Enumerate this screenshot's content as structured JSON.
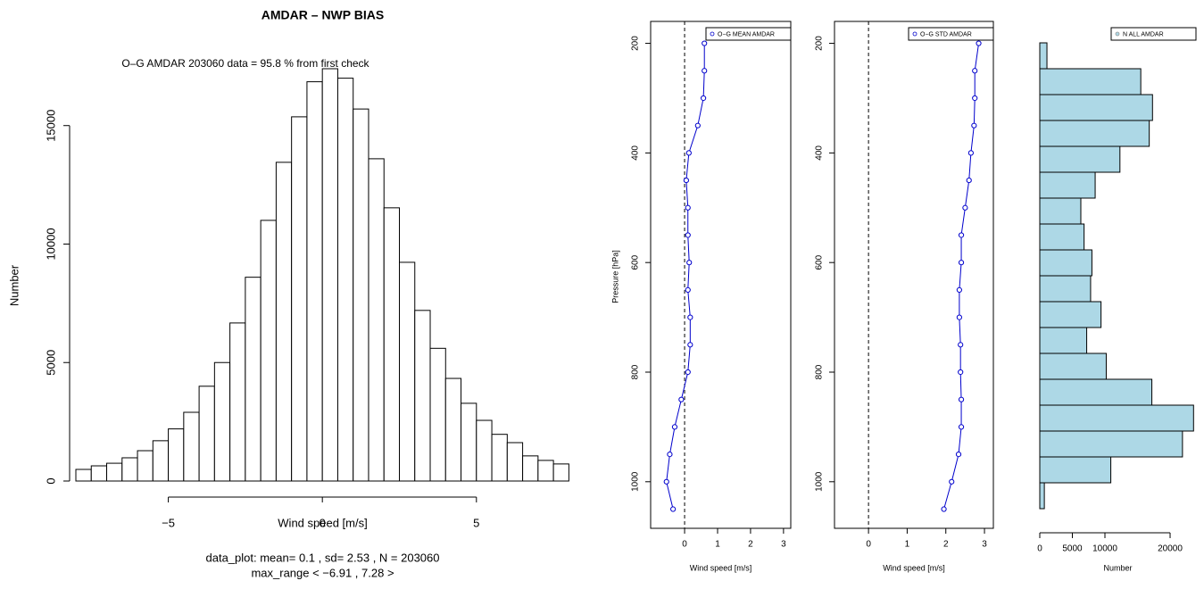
{
  "chart_data": [
    {
      "type": "histogram",
      "title": "AMDAR – NWP BIAS",
      "subtitle": "O–G AMDAR  203060 data = 95.8 % from first check",
      "x_label": "Wind speed [m/s]",
      "y_label": "Number",
      "footer": [
        "data_plot: mean= 0.1 , sd= 2.53 , N = 203060",
        "max_range < −6.91 , 7.28 >"
      ],
      "bins": [
        -8,
        -7.5,
        -7,
        -6.5,
        -6,
        -5.5,
        -5,
        -4.5,
        -4,
        -3.5,
        -3,
        -2.5,
        -2,
        -1.5,
        -1,
        -0.5,
        0,
        0.5,
        1,
        1.5,
        2,
        2.5,
        3,
        3.5,
        4,
        4.5,
        5,
        5.5,
        6,
        6.5,
        7,
        7.5,
        8
      ],
      "values": [
        490,
        640,
        750,
        980,
        1280,
        1700,
        2200,
        2900,
        4000,
        5000,
        6670,
        8600,
        11000,
        13450,
        15370,
        16850,
        17400,
        17000,
        15700,
        13600,
        11530,
        9230,
        7200,
        5600,
        4330,
        3280,
        2560,
        1970,
        1620,
        1060,
        870,
        720
      ],
      "color": "#ffffff",
      "xlim": [
        -8,
        8.25
      ],
      "xticks": [
        {
          "value": -5,
          "label": "−5"
        },
        0,
        5
      ],
      "ylim": [
        0,
        17400
      ],
      "yticks": [
        0,
        5000,
        10000,
        15000
      ]
    },
    {
      "type": "line",
      "x_label": "Wind speed [m/s]",
      "y_label": "Pressure [hPa]",
      "y": [
        200,
        250,
        300,
        350,
        400,
        450,
        500,
        550,
        600,
        650,
        700,
        750,
        800,
        850,
        900,
        950,
        1000,
        1050
      ],
      "series": [
        {
          "name": "O−G MEAN AMDAR",
          "color": "#0000cc",
          "values": [
            0.6,
            0.6,
            0.57,
            0.4,
            0.13,
            0.05,
            0.1,
            0.1,
            0.14,
            0.1,
            0.17,
            0.17,
            0.1,
            -0.1,
            -0.3,
            -0.45,
            -0.55,
            -0.35
          ]
        }
      ],
      "vline": 0,
      "xlim": [
        -1.03,
        3.22
      ],
      "xticks": [
        0,
        1,
        2,
        3
      ],
      "ylim": [
        1085,
        160
      ],
      "yticks": [
        200,
        400,
        600,
        800,
        1000
      ]
    },
    {
      "type": "line",
      "x_label": "Wind speed [m/s]",
      "y": [
        200,
        250,
        300,
        350,
        400,
        450,
        500,
        550,
        600,
        650,
        700,
        750,
        800,
        850,
        900,
        950,
        1000,
        1050
      ],
      "series": [
        {
          "name": "O−G STD AMDAR",
          "color": "#0000cc",
          "values": [
            2.85,
            2.75,
            2.75,
            2.73,
            2.65,
            2.6,
            2.5,
            2.4,
            2.4,
            2.35,
            2.35,
            2.38,
            2.38,
            2.4,
            2.4,
            2.33,
            2.15,
            1.95
          ]
        }
      ],
      "vline": 0,
      "xlim": [
        -0.88,
        3.23
      ],
      "xticks": [
        0,
        1,
        2,
        3
      ],
      "ylim": [
        1085,
        160
      ],
      "yticks": [
        200,
        400,
        600,
        800,
        1000
      ]
    },
    {
      "type": "barh",
      "x_label": "Number",
      "categories": [
        null,
        null,
        null,
        null,
        null,
        null,
        null,
        null,
        null,
        null,
        null,
        null,
        null,
        null,
        null,
        null,
        null,
        null
      ],
      "series": [
        {
          "name": "N ALL AMDAR",
          "color": "#add8e6",
          "values": [
            1100,
            15500,
            17300,
            16800,
            12300,
            8500,
            6300,
            6800,
            8000,
            7800,
            9400,
            7200,
            10200,
            17200,
            23600,
            21900,
            10900,
            700
          ]
        }
      ],
      "xlim": [
        -2740,
        23970
      ],
      "xticks": [
        0,
        5000,
        10000,
        20000
      ]
    }
  ]
}
